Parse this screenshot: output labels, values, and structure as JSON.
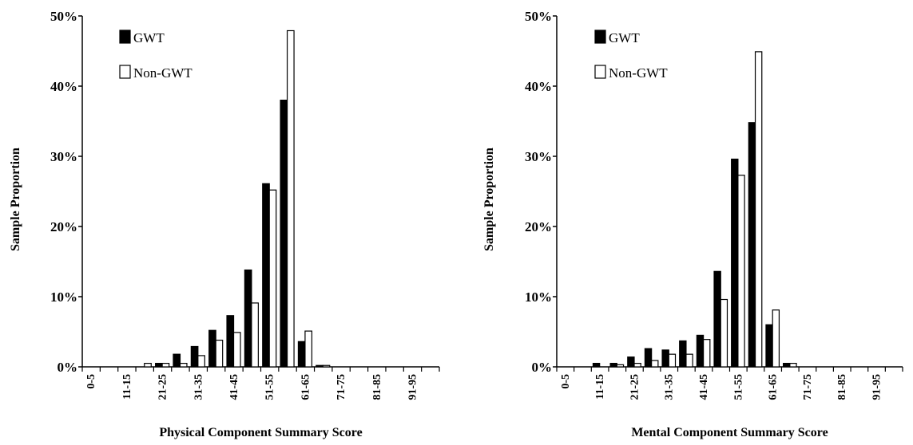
{
  "chart_data": [
    {
      "type": "bar",
      "xlabel": "Physical Component Summary Score",
      "ylabel": "Sample Proportion",
      "ylim": [
        0,
        50
      ],
      "yticks": [
        "0%",
        "10%",
        "20%",
        "30%",
        "40%",
        "50%"
      ],
      "categories": [
        "0-5",
        "",
        "11-15",
        "",
        "21-25",
        "",
        "31-35",
        "",
        "41-45",
        "",
        "51-55",
        "",
        "61-65",
        "",
        "71-75",
        "",
        "81-85",
        "",
        "91-95",
        ""
      ],
      "series": [
        {
          "name": "GWT",
          "color": "#000000",
          "values": [
            0,
            0,
            0,
            0,
            0.5,
            1.8,
            2.9,
            5.2,
            7.3,
            13.8,
            26.1,
            38.0,
            3.6,
            0.2,
            0,
            0,
            0,
            0,
            0,
            0
          ]
        },
        {
          "name": "Non-GWT",
          "color": "#ffffff",
          "values": [
            0,
            0,
            0,
            0.5,
            0.5,
            0.5,
            1.6,
            3.8,
            4.9,
            9.1,
            25.2,
            47.9,
            5.1,
            0.2,
            0,
            0,
            0,
            0,
            0,
            0
          ]
        }
      ],
      "legend_position": "top-left",
      "grid": false
    },
    {
      "type": "bar",
      "xlabel": "Mental Component Summary Score",
      "ylabel": "Sample Proportion",
      "ylim": [
        0,
        50
      ],
      "yticks": [
        "0%",
        "10%",
        "20%",
        "30%",
        "40%",
        "50%"
      ],
      "categories": [
        "0-5",
        "",
        "11-15",
        "",
        "21-25",
        "",
        "31-35",
        "",
        "41-45",
        "",
        "51-55",
        "",
        "61-65",
        "",
        "71-75",
        "",
        "81-85",
        "",
        "91-95",
        ""
      ],
      "series": [
        {
          "name": "GWT",
          "color": "#000000",
          "values": [
            0,
            0,
            0.5,
            0.5,
            1.4,
            2.6,
            2.4,
            3.7,
            4.5,
            13.6,
            29.6,
            34.8,
            6.0,
            0.5,
            0,
            0,
            0,
            0,
            0,
            0
          ]
        },
        {
          "name": "Non-GWT",
          "color": "#ffffff",
          "values": [
            0,
            0,
            0,
            0.3,
            0.5,
            0.9,
            1.8,
            1.8,
            3.9,
            9.6,
            27.3,
            44.9,
            8.1,
            0.5,
            0,
            0,
            0,
            0,
            0,
            0
          ]
        }
      ],
      "legend_position": "top-left",
      "grid": false
    }
  ]
}
